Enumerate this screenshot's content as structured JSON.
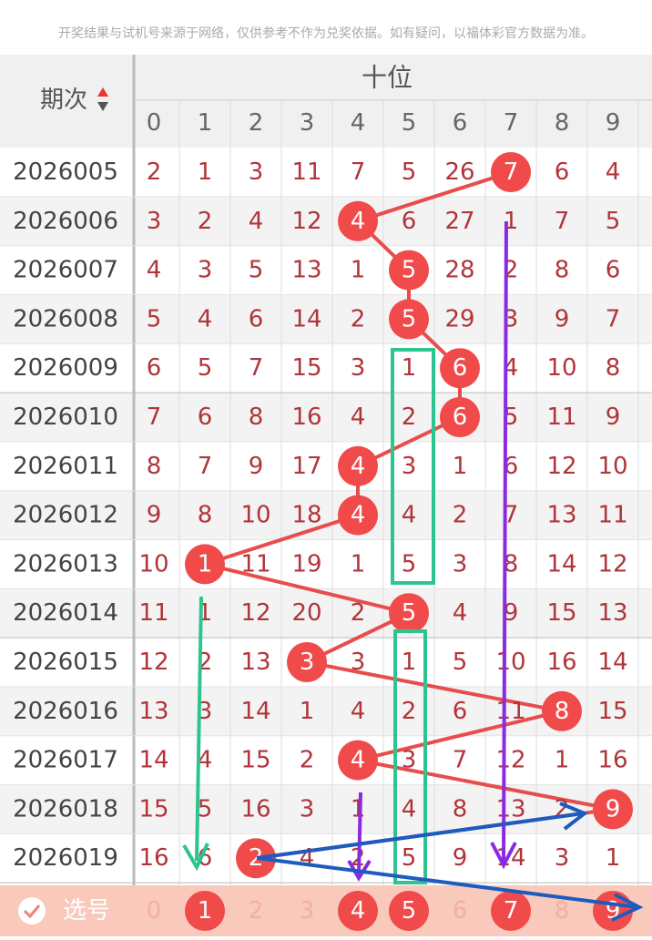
{
  "notice": "开奖结果与试机号来源于网络，仅供参考不作为兑奖依据。如有疑问，以福体彩官方数据为准。",
  "header": {
    "issue_label": "期次",
    "group_label": "十位",
    "digits": [
      "0",
      "1",
      "2",
      "3",
      "4",
      "5",
      "6",
      "7",
      "8",
      "9"
    ]
  },
  "rows": [
    {
      "issue": "2026005",
      "cells": [
        "2",
        "1",
        "3",
        "11",
        "7",
        "5",
        "26",
        "7",
        "6",
        "4"
      ],
      "hit": 7
    },
    {
      "issue": "2026006",
      "cells": [
        "3",
        "2",
        "4",
        "12",
        "4",
        "6",
        "27",
        "1",
        "7",
        "5"
      ],
      "hit": 4
    },
    {
      "issue": "2026007",
      "cells": [
        "4",
        "3",
        "5",
        "13",
        "1",
        "5",
        "28",
        "2",
        "8",
        "6"
      ],
      "hit": 5
    },
    {
      "issue": "2026008",
      "cells": [
        "5",
        "4",
        "6",
        "14",
        "2",
        "5",
        "29",
        "3",
        "9",
        "7"
      ],
      "hit": 5
    },
    {
      "issue": "2026009",
      "cells": [
        "6",
        "5",
        "7",
        "15",
        "3",
        "1",
        "6",
        "4",
        "10",
        "8"
      ],
      "hit": 6
    },
    {
      "issue": "2026010",
      "cells": [
        "7",
        "6",
        "8",
        "16",
        "4",
        "2",
        "6",
        "5",
        "11",
        "9"
      ],
      "hit": 6
    },
    {
      "issue": "2026011",
      "cells": [
        "8",
        "7",
        "9",
        "17",
        "4",
        "3",
        "1",
        "6",
        "12",
        "10"
      ],
      "hit": 4
    },
    {
      "issue": "2026012",
      "cells": [
        "9",
        "8",
        "10",
        "18",
        "4",
        "4",
        "2",
        "7",
        "13",
        "11"
      ],
      "hit": 4
    },
    {
      "issue": "2026013",
      "cells": [
        "10",
        "1",
        "11",
        "19",
        "1",
        "5",
        "3",
        "8",
        "14",
        "12"
      ],
      "hit": 1
    },
    {
      "issue": "2026014",
      "cells": [
        "11",
        "1",
        "12",
        "20",
        "2",
        "5",
        "4",
        "9",
        "15",
        "13"
      ],
      "hit": 5
    },
    {
      "issue": "2026015",
      "cells": [
        "12",
        "2",
        "13",
        "3",
        "3",
        "1",
        "5",
        "10",
        "16",
        "14"
      ],
      "hit": 3
    },
    {
      "issue": "2026016",
      "cells": [
        "13",
        "3",
        "14",
        "1",
        "4",
        "2",
        "6",
        "11",
        "8",
        "15"
      ],
      "hit": 8
    },
    {
      "issue": "2026017",
      "cells": [
        "14",
        "4",
        "15",
        "2",
        "4",
        "3",
        "7",
        "12",
        "1",
        "16"
      ],
      "hit": 4
    },
    {
      "issue": "2026018",
      "cells": [
        "15",
        "5",
        "16",
        "3",
        "1",
        "4",
        "8",
        "13",
        "2",
        "9"
      ],
      "hit": 9
    },
    {
      "issue": "2026019",
      "cells": [
        "16",
        "6",
        "2",
        "4",
        "2",
        "5",
        "9",
        "14",
        "3",
        "1"
      ],
      "hit": 2
    }
  ],
  "footer": {
    "label": "选号",
    "selected": [
      1,
      4,
      5,
      7,
      9
    ]
  }
}
